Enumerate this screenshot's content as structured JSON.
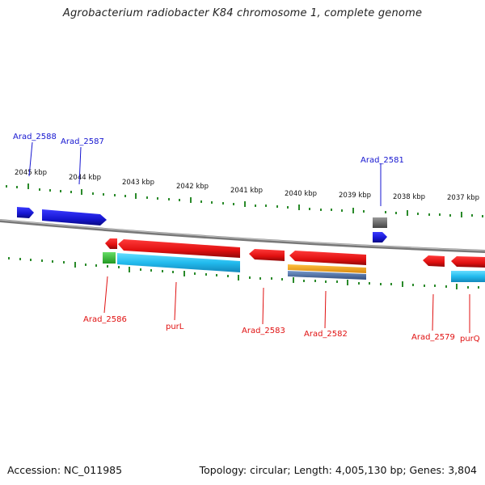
{
  "title": "Agrobacterium radiobacter K84 chromosome 1, complete genome",
  "footer": {
    "accession": "Accession: NC_011985",
    "summary": "Topology: circular; Length: 4,005,130 bp; Genes: 3,804"
  },
  "colors": {
    "forward_gene": "#1515d0",
    "reverse_gene": "#e01010",
    "cds_cyan": "#22bbee",
    "cds_green": "#33bb33",
    "cds_orange": "#f0a020",
    "cds_steel": "#5577aa",
    "grey_gene": "#666666",
    "tick": "#2a8a2a",
    "backbone": "#888888"
  },
  "ticks": {
    "labels": [
      "2045 kbp",
      "2044 kbp",
      "2043 kbp",
      "2042 kbp",
      "2041 kbp",
      "2040 kbp",
      "2039 kbp",
      "2038 kbp",
      "2037 kbp"
    ]
  },
  "labels": {
    "top": [
      "Arad_2588",
      "Arad_2587",
      "Arad_2581"
    ],
    "bottom": [
      "Arad_2586",
      "purL",
      "Arad_2583",
      "Arad_2582",
      "Arad_2579",
      "purQ"
    ]
  }
}
